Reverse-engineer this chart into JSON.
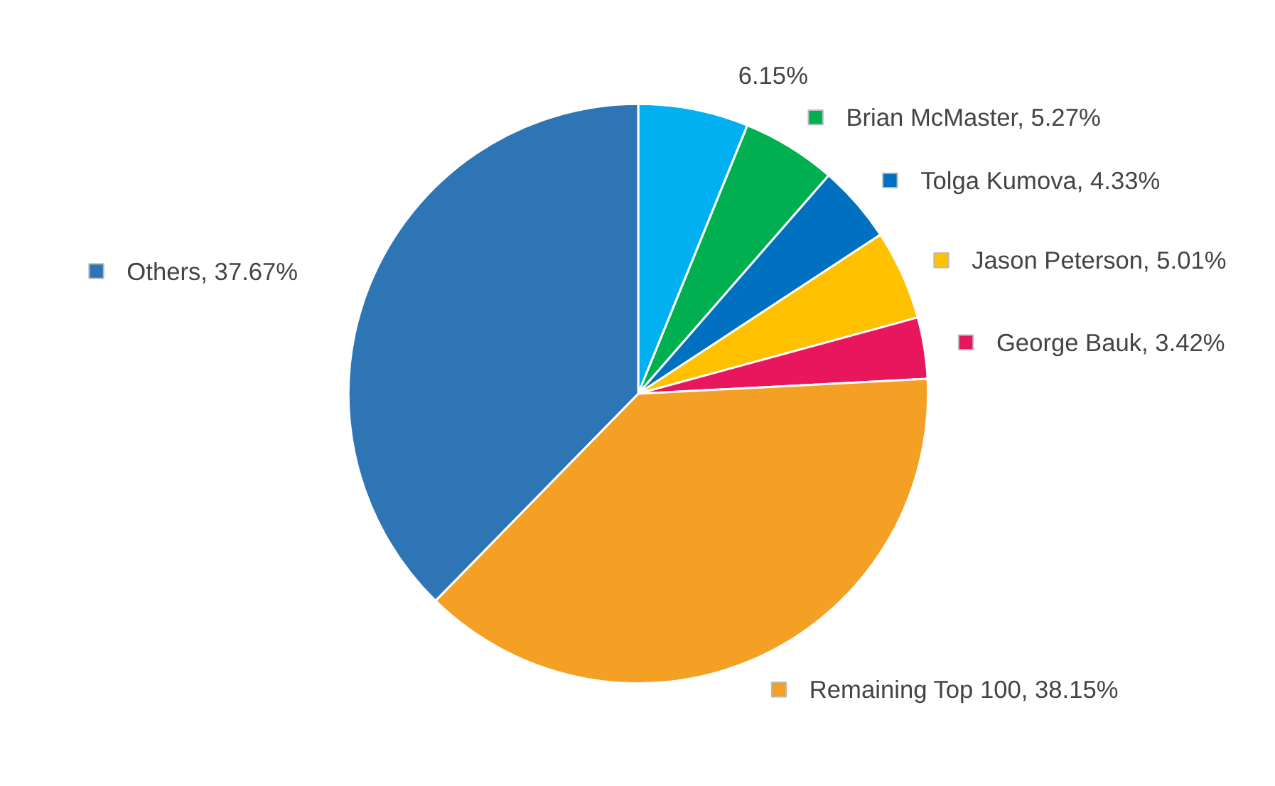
{
  "chart_data": {
    "type": "pie",
    "categories": [
      null,
      "Brian McMaster",
      "Tolga Kumova",
      "Jason Peterson",
      "George Bauk",
      "Remaining Top 100",
      "Others"
    ],
    "values": [
      6.15,
      5.27,
      4.33,
      5.01,
      3.42,
      38.15,
      37.67
    ],
    "value_labels": [
      "6.15%",
      "5.27%",
      "4.33%",
      "5.01%",
      "3.42%",
      "38.15%",
      "37.67%"
    ],
    "colors": [
      "#00b0f0",
      "#00b050",
      "#0070c0",
      "#ffc000",
      "#e8175d",
      "#f4a024",
      "#2e75b6"
    ],
    "legend": "right"
  }
}
